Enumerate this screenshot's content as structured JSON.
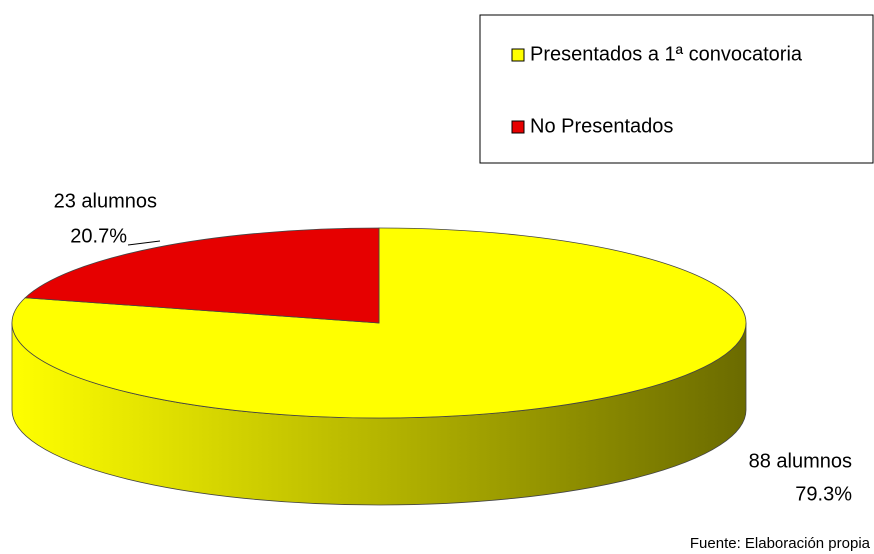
{
  "chart_data": {
    "type": "pie",
    "categories": [
      "Presentados a 1ª convocatoria",
      "No Presentados"
    ],
    "values": [
      88,
      23
    ],
    "value_labels": [
      "88 alumnos",
      "23 alumnos"
    ],
    "percentages": [
      79.3,
      20.7
    ],
    "percentage_labels": [
      "79.3%",
      "20.7%"
    ],
    "colors": [
      "#ffff00",
      "#e60000"
    ],
    "side_colors": [
      "#ffff00",
      "#6b6b00"
    ],
    "legend": "top-right",
    "source": "Fuente: Elaboración propia"
  }
}
